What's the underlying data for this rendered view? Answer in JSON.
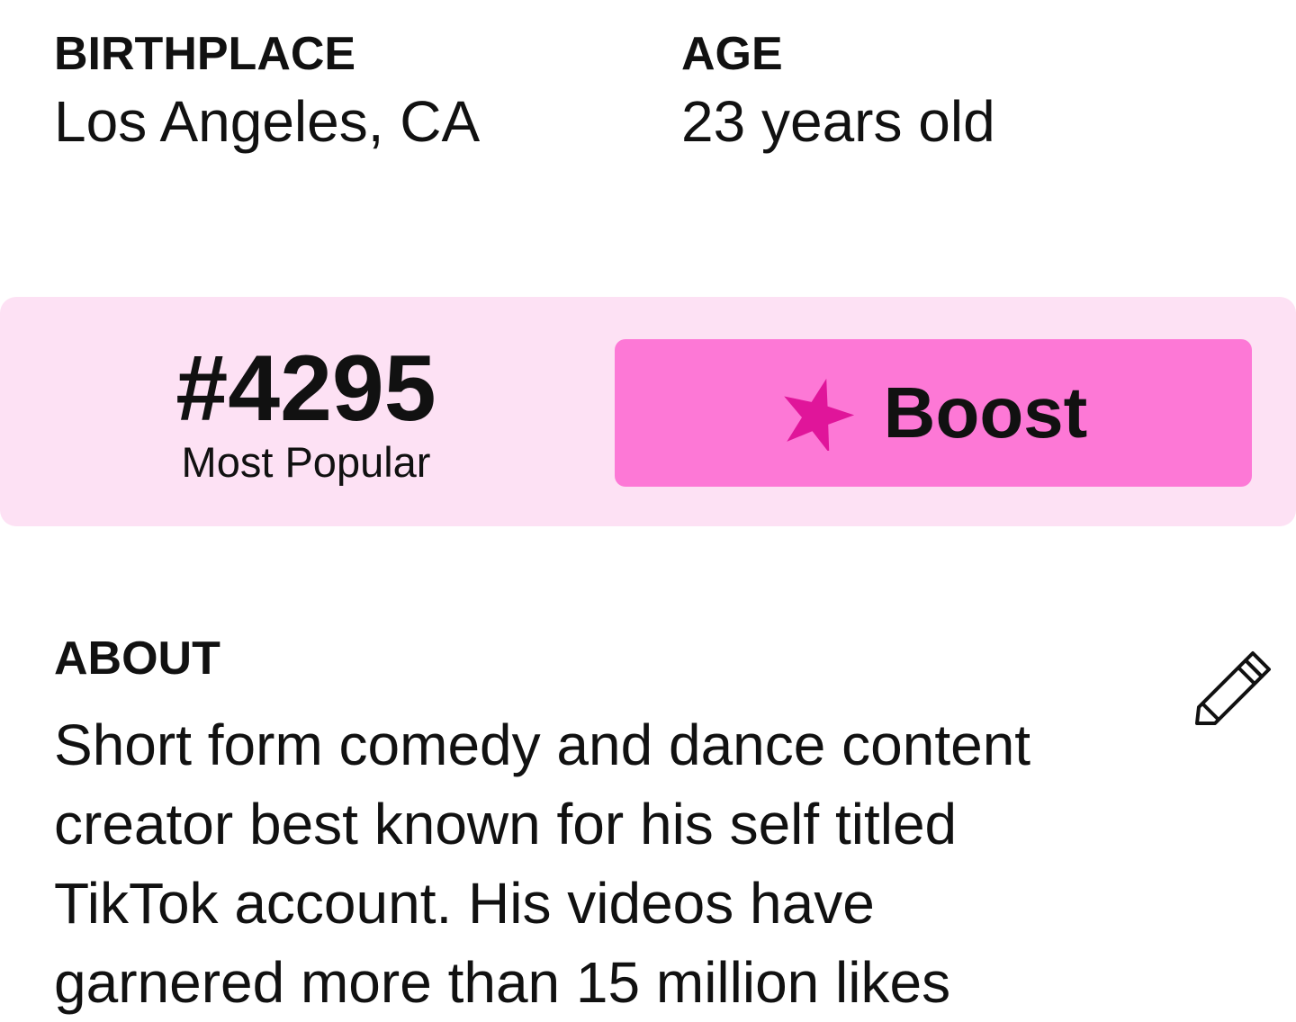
{
  "birthplace": {
    "label": "BIRTHPLACE",
    "value": "Los Angeles, CA"
  },
  "age": {
    "label": "AGE",
    "value": "23 years old"
  },
  "rank": {
    "value": "#4295",
    "caption": "Most Popular"
  },
  "boost": {
    "label": "Boost",
    "icon": "star-icon",
    "button_color": "#fd78d6",
    "icon_color": "#e0159a"
  },
  "band_color": "#fde1f4",
  "about": {
    "label": "ABOUT",
    "edit_icon": "pencil-icon",
    "lines": [
      "Short form comedy and dance content",
      "creator best known for his self titled",
      "TikTok account. His videos have",
      "garnered more than 15 million likes"
    ]
  }
}
